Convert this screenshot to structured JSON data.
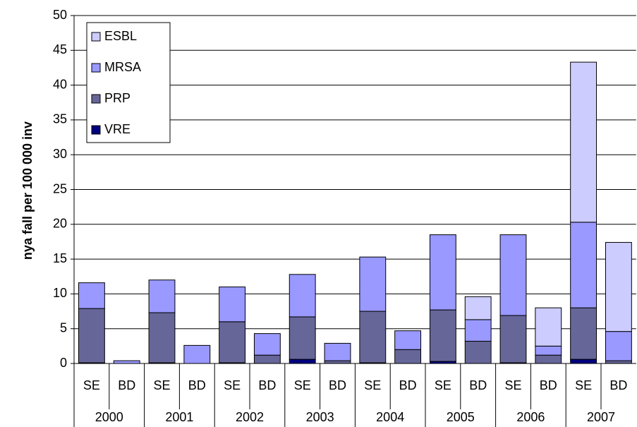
{
  "chart_data": {
    "type": "stacked-bar",
    "y_label": "nya fall per 100 000 inv",
    "groups": [
      "2000",
      "2001",
      "2002",
      "2003",
      "2004",
      "2005",
      "2006",
      "2007"
    ],
    "categories": [
      "SE",
      "BD",
      "SE",
      "BD",
      "SE",
      "BD",
      "SE",
      "BD",
      "SE",
      "BD",
      "SE",
      "BD",
      "SE",
      "BD",
      "SE",
      "BD"
    ],
    "series": [
      {
        "name": "VRE",
        "color": "#000080",
        "values": [
          0.1,
          0,
          0.1,
          0,
          0.1,
          0,
          0.6,
          0,
          0.1,
          0,
          0.3,
          0,
          0.1,
          0,
          0.6,
          0
        ]
      },
      {
        "name": "PRP",
        "color": "#666699",
        "values": [
          7.8,
          0,
          7.2,
          0,
          5.9,
          1.2,
          6.1,
          0.4,
          7.4,
          2.0,
          7.4,
          3.2,
          6.8,
          1.2,
          7.4,
          0.4
        ]
      },
      {
        "name": "MRSA",
        "color": "#9999ff",
        "values": [
          3.7,
          0.4,
          4.7,
          2.6,
          5.0,
          3.1,
          6.1,
          2.5,
          7.8,
          2.7,
          10.8,
          3.1,
          11.6,
          1.3,
          12.3,
          4.2
        ]
      },
      {
        "name": "ESBL",
        "color": "#ccccff",
        "values": [
          0,
          0,
          0,
          0,
          0,
          0,
          0,
          0,
          0,
          0,
          0,
          3.3,
          0,
          5.5,
          23.0,
          12.8
        ]
      }
    ],
    "ylim": [
      0,
      50
    ],
    "yticks": [
      0,
      5,
      10,
      15,
      20,
      25,
      30,
      35,
      40,
      45,
      50
    ],
    "grid": true,
    "legend": "top-left"
  }
}
